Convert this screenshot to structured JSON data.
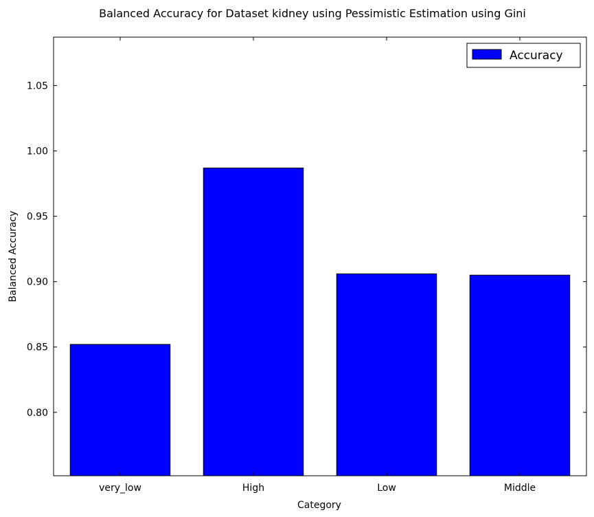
{
  "chart_data": {
    "type": "bar",
    "title": "Balanced Accuracy for Dataset kidney using Pessimistic Estimation using Gini",
    "xlabel": "Category",
    "ylabel": "Balanced Accuracy",
    "categories": [
      "very_low",
      "High",
      "Low",
      "Middle"
    ],
    "series": [
      {
        "name": "Accuracy",
        "values": [
          0.852,
          0.987,
          0.906,
          0.905
        ],
        "color": "#0000ff"
      }
    ],
    "ylim": [
      0.7515,
      1.0871
    ],
    "yticks": [
      "0.80",
      "0.85",
      "0.90",
      "0.95",
      "1.00",
      "1.05"
    ],
    "legend_position": "top-right",
    "grid": false
  }
}
